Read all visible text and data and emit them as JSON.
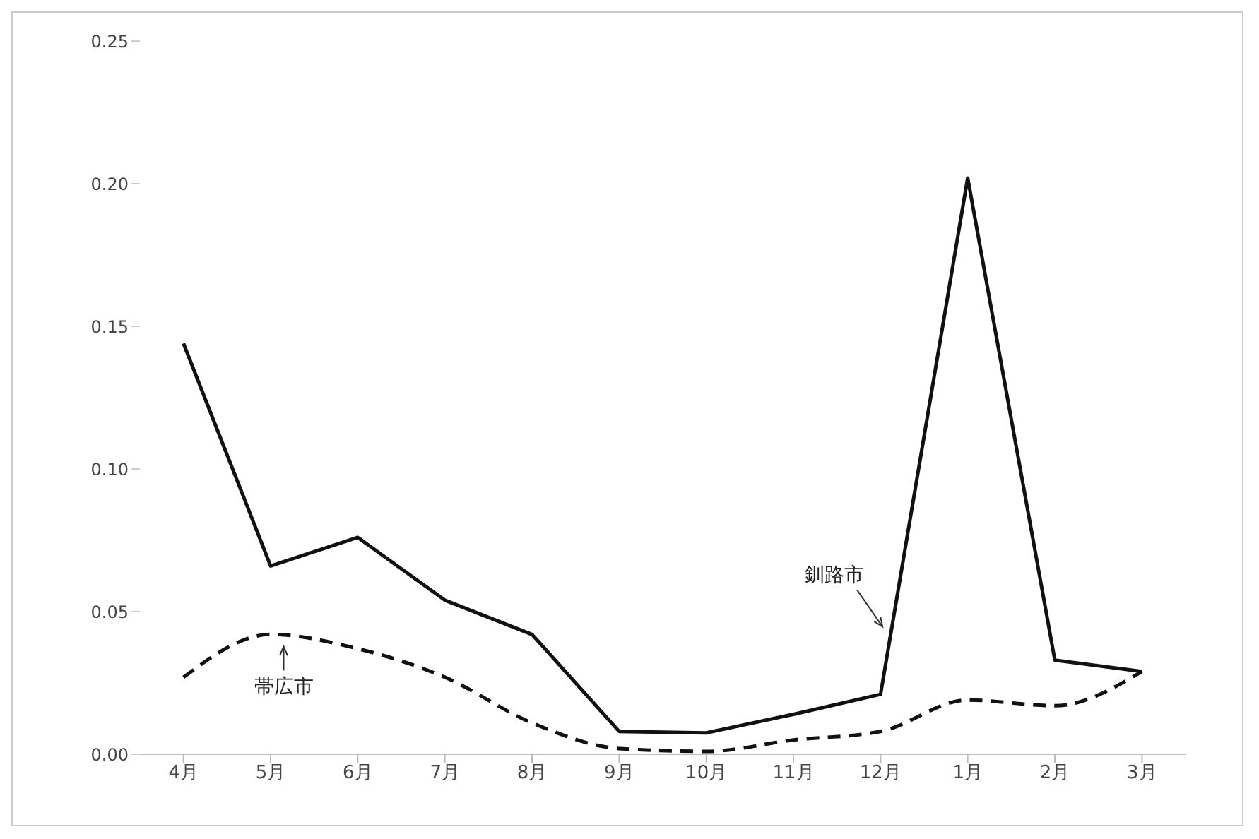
{
  "chart_data": {
    "type": "line",
    "categories": [
      "4月",
      "5月",
      "6月",
      "7月",
      "8月",
      "9月",
      "10月",
      "11月",
      "12月",
      "1月",
      "2月",
      "3月"
    ],
    "series": [
      {
        "name": "釧路市",
        "color": "#111111",
        "line_style": "solid",
        "values": [
          0.144,
          0.066,
          0.076,
          0.054,
          0.042,
          0.008,
          0.0075,
          0.014,
          0.021,
          0.202,
          0.033,
          0.029
        ]
      },
      {
        "name": "帯広市",
        "color": "#111111",
        "line_style": "dashed",
        "values": [
          0.027,
          0.042,
          0.037,
          0.027,
          0.011,
          0.002,
          0.001,
          0.005,
          0.008,
          0.019,
          0.017,
          0.029
        ]
      }
    ],
    "ylim": [
      0,
      0.25
    ],
    "yticks": [
      {
        "value": 0,
        "label": "0.00"
      },
      {
        "value": 0.05,
        "label": "0.05"
      },
      {
        "value": 0.1,
        "label": "0.10"
      },
      {
        "value": 0.15,
        "label": "0.15"
      },
      {
        "value": 0.2,
        "label": "0.20"
      },
      {
        "value": 0.25,
        "label": "0.25"
      }
    ],
    "grid": false,
    "legend": false,
    "marker": "none"
  }
}
